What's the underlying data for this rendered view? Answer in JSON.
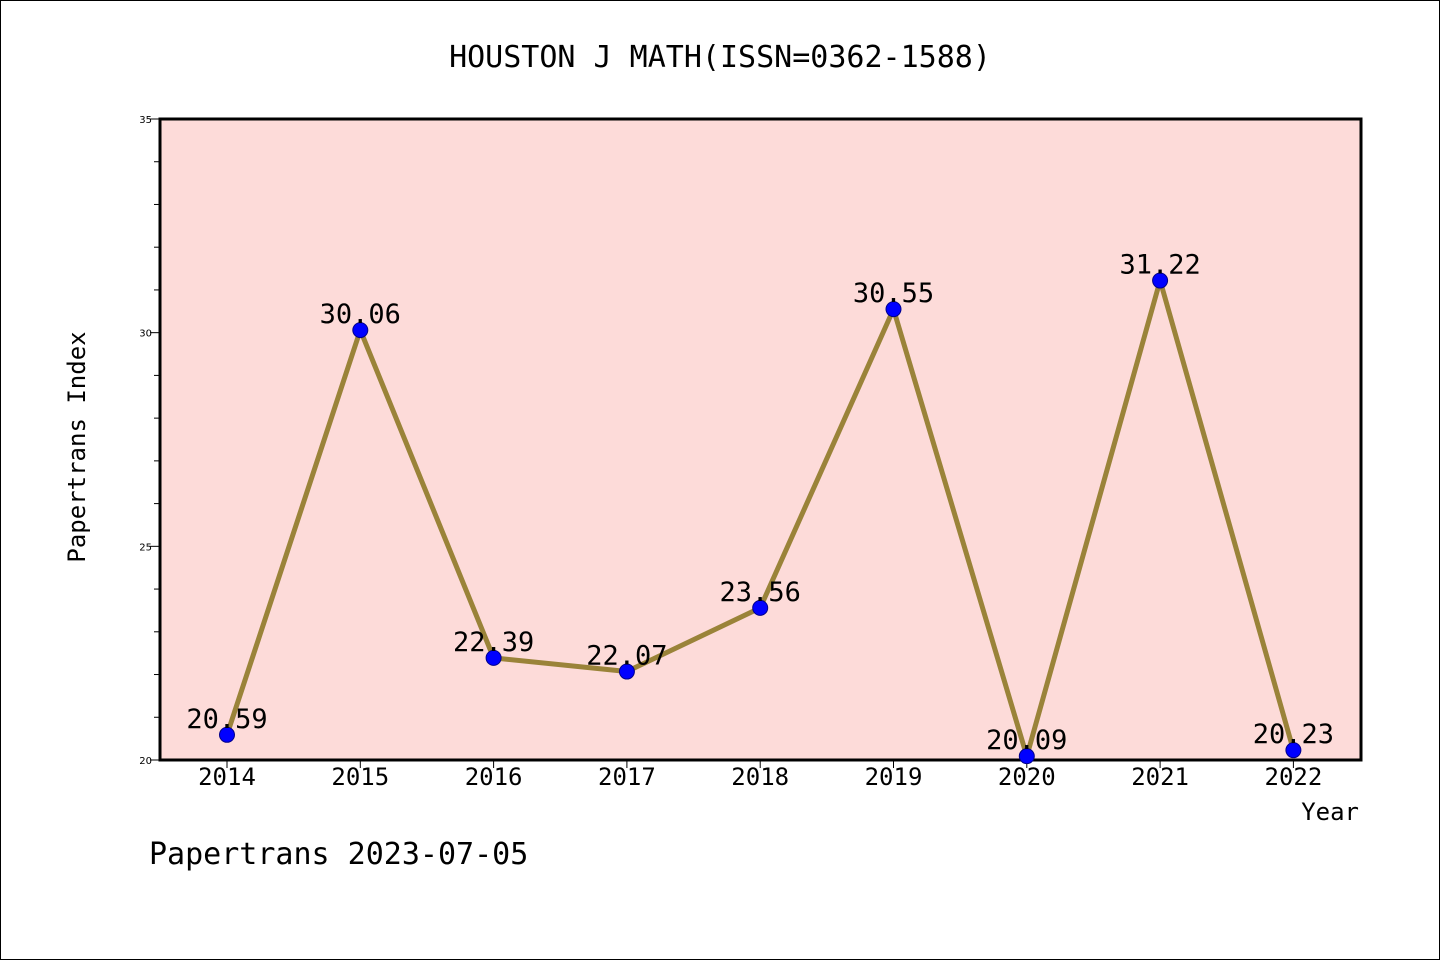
{
  "chart_data": {
    "type": "line",
    "title": "HOUSTON J MATH(ISSN=0362-1588)",
    "xlabel": "Year",
    "ylabel": "Papertrans Index",
    "categories": [
      "2014",
      "2015",
      "2016",
      "2017",
      "2018",
      "2019",
      "2020",
      "2021",
      "2022"
    ],
    "series": [
      {
        "values": [
          20.59,
          30.06,
          22.39,
          22.07,
          23.56,
          30.55,
          20.09,
          31.22,
          20.23
        ]
      }
    ],
    "data_labels": [
      "20.59",
      "30.06",
      "22.39",
      "22.07",
      "23.56",
      "30.55",
      "20.09",
      "31.22",
      "20.23"
    ],
    "ylim": [
      20,
      35
    ],
    "yticks": [
      "20",
      "25",
      "30",
      "35"
    ],
    "grid": false,
    "legend": "none",
    "footer": "Papertrans 2023-07-05",
    "colors": {
      "plot_background": "#fddbd9",
      "line": "#9a8339",
      "marker": "#0000ff",
      "marker_edge": "#00008b"
    }
  }
}
